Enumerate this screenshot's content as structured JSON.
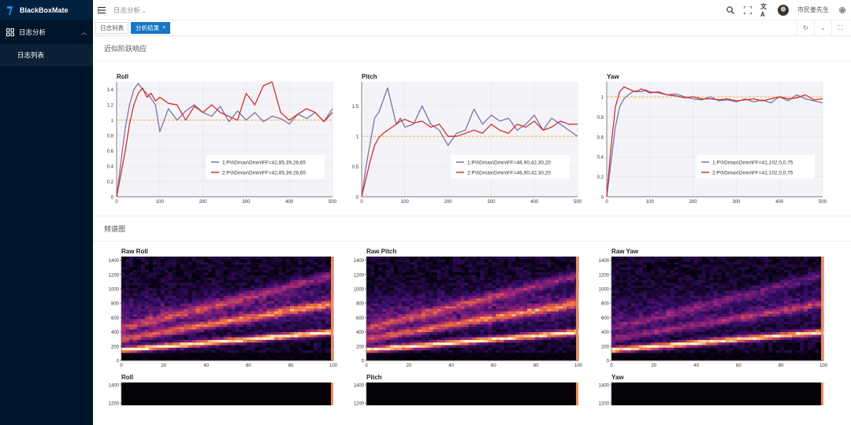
{
  "app": {
    "name": "BlackBoxMate"
  },
  "sidebar": {
    "menu": {
      "label": "日志分析",
      "icon": "grid-icon"
    },
    "items": [
      {
        "label": "日志列表"
      }
    ]
  },
  "header": {
    "breadcrumb": "日志分析",
    "user": "市民姜先生"
  },
  "tabs": [
    {
      "label": "日志列表",
      "active": false
    },
    {
      "label": "分析结果",
      "active": true,
      "close": "×"
    }
  ],
  "sections": {
    "step_response": "近似阶跃响应",
    "spectrum": "频谱图"
  },
  "colors": {
    "accent": "#1677c7",
    "sidebar": "#001529",
    "series1": "#7b74a8",
    "series2": "#d62d2d",
    "ref": "#f5a623"
  },
  "chart_data": [
    {
      "type": "line",
      "title": "Roll",
      "x": [
        0,
        10,
        20,
        30,
        40,
        50,
        60,
        70,
        80,
        90,
        100,
        120,
        140,
        160,
        180,
        200,
        220,
        240,
        260,
        280,
        300,
        320,
        340,
        360,
        380,
        400,
        420,
        440,
        460,
        480,
        500
      ],
      "series": [
        {
          "name": "1:P\\I\\Dmax\\Dmin\\FF=42,85,39,28,65",
          "values": [
            0,
            0.45,
            0.9,
            1.2,
            1.4,
            1.48,
            1.4,
            1.35,
            1.28,
            1.2,
            0.85,
            1.15,
            1.0,
            1.12,
            1.2,
            1.1,
            1.05,
            1.18,
            0.98,
            1.12,
            1.0,
            1.1,
            0.98,
            1.05,
            1.02,
            0.95,
            1.08,
            1.02,
            1.1,
            0.98,
            1.15
          ]
        },
        {
          "name": "2:P\\I\\Dmax\\Dmin\\FF=42,85,39,28,65",
          "values": [
            0,
            0.3,
            0.6,
            0.95,
            1.2,
            1.35,
            1.42,
            1.3,
            1.35,
            1.25,
            1.3,
            1.22,
            1.2,
            1.0,
            1.18,
            1.1,
            1.2,
            1.1,
            1.05,
            1.0,
            1.35,
            1.2,
            1.45,
            1.5,
            1.1,
            1.0,
            1.08,
            1.15,
            1.1,
            0.98,
            1.1
          ]
        }
      ],
      "ref": 1,
      "ylim": [
        0,
        1.5
      ],
      "yticks": [
        0,
        0.2,
        0.4,
        0.6,
        0.8,
        1,
        1.2,
        1.4
      ],
      "xticks": [
        0,
        100,
        200,
        300,
        400,
        500
      ],
      "legend": "bottom-right"
    },
    {
      "type": "line",
      "title": "Pitch",
      "x": [
        0,
        10,
        20,
        30,
        40,
        50,
        60,
        70,
        80,
        90,
        100,
        120,
        140,
        160,
        180,
        200,
        220,
        240,
        260,
        280,
        300,
        320,
        340,
        360,
        380,
        400,
        420,
        440,
        460,
        480,
        500
      ],
      "series": [
        {
          "name": "1:P\\I\\Dmax\\Dmin\\FF=46,90,42,30,20",
          "values": [
            0,
            0.5,
            0.9,
            1.3,
            1.4,
            1.6,
            1.8,
            1.5,
            1.2,
            1.3,
            1.15,
            1.2,
            1.5,
            1.2,
            1.1,
            0.85,
            1.05,
            1.1,
            1.45,
            1.2,
            1.35,
            1.25,
            1.3,
            1.1,
            1.2,
            1.35,
            1.1,
            1.3,
            1.2,
            1.1,
            1.0
          ]
        },
        {
          "name": "2:P\\I\\Dmax\\Dmin\\FF=46,90,42,30,20",
          "values": [
            0,
            0.3,
            0.6,
            0.85,
            0.98,
            1.05,
            1.1,
            1.15,
            1.2,
            1.25,
            1.28,
            1.22,
            1.25,
            1.15,
            1.2,
            1.0,
            1.0,
            1.05,
            1.1,
            1.05,
            1.2,
            1.1,
            1.05,
            1.2,
            1.15,
            1.25,
            1.1,
            1.15,
            1.25,
            1.2,
            1.2
          ]
        }
      ],
      "ref": 1,
      "ylim": [
        0,
        1.9
      ],
      "yticks": [
        0,
        0.5,
        1,
        1.5
      ],
      "xticks": [
        0,
        100,
        200,
        300,
        400,
        500
      ],
      "legend": "bottom-right"
    },
    {
      "type": "line",
      "title": "Yaw",
      "x": [
        0,
        10,
        20,
        30,
        40,
        50,
        60,
        70,
        80,
        90,
        100,
        120,
        140,
        160,
        180,
        200,
        220,
        240,
        260,
        280,
        300,
        320,
        340,
        360,
        380,
        400,
        420,
        440,
        460,
        480,
        500
      ],
      "series": [
        {
          "name": "1:P\\I\\Dmax\\Dmin\\FF=41,102,0,0,75",
          "values": [
            0,
            0.35,
            0.7,
            0.9,
            0.98,
            1.02,
            1.05,
            1.06,
            1.05,
            1.07,
            1.05,
            1.04,
            1.02,
            1.03,
            1.0,
            0.98,
            0.97,
            1.0,
            0.96,
            0.97,
            0.95,
            0.98,
            0.95,
            0.97,
            0.94,
            1.0,
            0.96,
            1.02,
            0.98,
            0.96,
            0.94
          ]
        },
        {
          "name": "2:P\\I\\Dmax\\Dmin\\FF=41,102,0,0,75",
          "values": [
            0,
            0.5,
            0.9,
            1.05,
            1.1,
            1.08,
            1.06,
            1.05,
            1.08,
            1.06,
            1.04,
            1.05,
            1.02,
            1.01,
            0.99,
            1.0,
            0.98,
            0.98,
            0.97,
            0.98,
            0.96,
            0.97,
            0.98,
            0.96,
            0.98,
            1.0,
            0.98,
            0.99,
            1.02,
            0.97,
            0.98
          ]
        }
      ],
      "ref": 1,
      "ylim": [
        0,
        1.15
      ],
      "yticks": [
        0,
        0.2,
        0.4,
        0.6,
        0.8,
        1
      ],
      "xticks": [
        0,
        100,
        200,
        300,
        400,
        500
      ],
      "legend": "bottom-right"
    },
    {
      "type": "heatmap",
      "title": "Raw Roll",
      "xlim": [
        0,
        100
      ],
      "ylim": [
        0,
        1450
      ],
      "xticks": [
        0,
        20,
        40,
        60,
        80,
        100
      ],
      "yticks": [
        0,
        200,
        400,
        600,
        800,
        1000,
        1200,
        1400
      ]
    },
    {
      "type": "heatmap",
      "title": "Raw Pitch",
      "xlim": [
        0,
        100
      ],
      "ylim": [
        0,
        1450
      ],
      "xticks": [
        0,
        20,
        40,
        60,
        80,
        100
      ],
      "yticks": [
        0,
        200,
        400,
        600,
        800,
        1000,
        1200,
        1400
      ]
    },
    {
      "type": "heatmap",
      "title": "Raw Yaw",
      "xlim": [
        0,
        100
      ],
      "ylim": [
        0,
        1450
      ],
      "xticks": [
        0,
        20,
        40,
        60,
        80,
        100
      ],
      "yticks": [
        0,
        200,
        400,
        600,
        800,
        1000,
        1200,
        1400
      ]
    },
    {
      "type": "heatmap",
      "title": "Roll",
      "yticks": [
        1200,
        1400
      ]
    },
    {
      "type": "heatmap",
      "title": "Pitch",
      "yticks": [
        1200,
        1400
      ]
    },
    {
      "type": "heatmap",
      "title": "Yaw",
      "yticks": [
        1200,
        1400
      ]
    }
  ]
}
